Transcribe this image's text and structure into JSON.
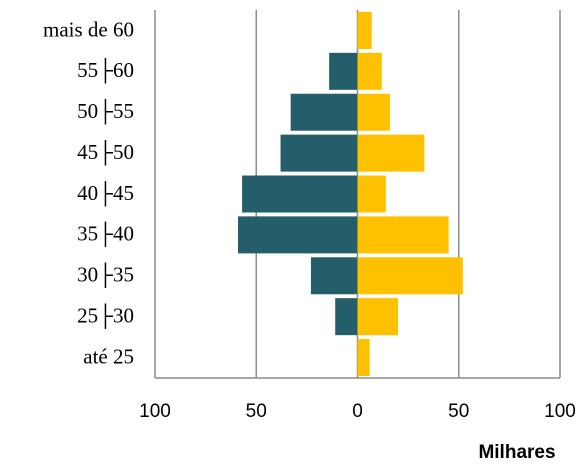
{
  "chart_data": {
    "type": "bar",
    "orientation": "horizontal",
    "categories": [
      "mais de 60",
      "55├60",
      "50├55",
      "45├50",
      "40├45",
      "35├40",
      "30├35",
      "25├30",
      "até 25"
    ],
    "series": [
      {
        "color": "#245e6b",
        "values": [
          0,
          -14,
          -33,
          -38,
          -57,
          -59,
          -23,
          -11,
          0
        ]
      },
      {
        "color": "#ffc000",
        "values": [
          7,
          12,
          16,
          33,
          14,
          45,
          52,
          20,
          6
        ]
      }
    ],
    "xlim": [
      -100,
      100
    ],
    "xticks": [
      {
        "value": -100,
        "label": "100"
      },
      {
        "value": -50,
        "label": "50"
      },
      0,
      50,
      100
    ],
    "x_label": "Milhares",
    "grid": true
  }
}
